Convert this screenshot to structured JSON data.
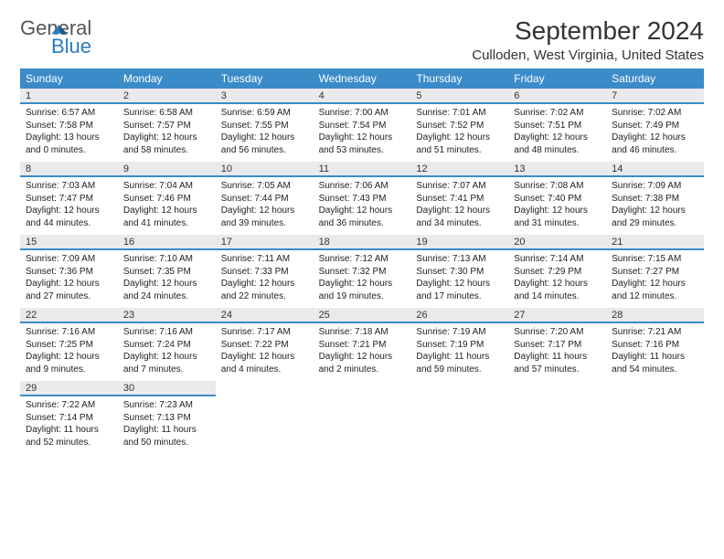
{
  "logo": {
    "word1": "General",
    "word2": "Blue"
  },
  "title": "September 2024",
  "location": "Culloden, West Virginia, United States",
  "colors": {
    "header_bg": "#3b8bc9",
    "header_text": "#ffffff",
    "daynum_bg": "#e9eaeb",
    "daynum_border": "#3b8bc9",
    "body_text": "#222222",
    "logo_gray": "#54555a",
    "logo_blue": "#2b7bbf"
  },
  "dow": [
    "Sunday",
    "Monday",
    "Tuesday",
    "Wednesday",
    "Thursday",
    "Friday",
    "Saturday"
  ],
  "days": [
    {
      "n": "1",
      "sr": "6:57 AM",
      "ss": "7:58 PM",
      "dl": "13 hours and 0 minutes."
    },
    {
      "n": "2",
      "sr": "6:58 AM",
      "ss": "7:57 PM",
      "dl": "12 hours and 58 minutes."
    },
    {
      "n": "3",
      "sr": "6:59 AM",
      "ss": "7:55 PM",
      "dl": "12 hours and 56 minutes."
    },
    {
      "n": "4",
      "sr": "7:00 AM",
      "ss": "7:54 PM",
      "dl": "12 hours and 53 minutes."
    },
    {
      "n": "5",
      "sr": "7:01 AM",
      "ss": "7:52 PM",
      "dl": "12 hours and 51 minutes."
    },
    {
      "n": "6",
      "sr": "7:02 AM",
      "ss": "7:51 PM",
      "dl": "12 hours and 48 minutes."
    },
    {
      "n": "7",
      "sr": "7:02 AM",
      "ss": "7:49 PM",
      "dl": "12 hours and 46 minutes."
    },
    {
      "n": "8",
      "sr": "7:03 AM",
      "ss": "7:47 PM",
      "dl": "12 hours and 44 minutes."
    },
    {
      "n": "9",
      "sr": "7:04 AM",
      "ss": "7:46 PM",
      "dl": "12 hours and 41 minutes."
    },
    {
      "n": "10",
      "sr": "7:05 AM",
      "ss": "7:44 PM",
      "dl": "12 hours and 39 minutes."
    },
    {
      "n": "11",
      "sr": "7:06 AM",
      "ss": "7:43 PM",
      "dl": "12 hours and 36 minutes."
    },
    {
      "n": "12",
      "sr": "7:07 AM",
      "ss": "7:41 PM",
      "dl": "12 hours and 34 minutes."
    },
    {
      "n": "13",
      "sr": "7:08 AM",
      "ss": "7:40 PM",
      "dl": "12 hours and 31 minutes."
    },
    {
      "n": "14",
      "sr": "7:09 AM",
      "ss": "7:38 PM",
      "dl": "12 hours and 29 minutes."
    },
    {
      "n": "15",
      "sr": "7:09 AM",
      "ss": "7:36 PM",
      "dl": "12 hours and 27 minutes."
    },
    {
      "n": "16",
      "sr": "7:10 AM",
      "ss": "7:35 PM",
      "dl": "12 hours and 24 minutes."
    },
    {
      "n": "17",
      "sr": "7:11 AM",
      "ss": "7:33 PM",
      "dl": "12 hours and 22 minutes."
    },
    {
      "n": "18",
      "sr": "7:12 AM",
      "ss": "7:32 PM",
      "dl": "12 hours and 19 minutes."
    },
    {
      "n": "19",
      "sr": "7:13 AM",
      "ss": "7:30 PM",
      "dl": "12 hours and 17 minutes."
    },
    {
      "n": "20",
      "sr": "7:14 AM",
      "ss": "7:29 PM",
      "dl": "12 hours and 14 minutes."
    },
    {
      "n": "21",
      "sr": "7:15 AM",
      "ss": "7:27 PM",
      "dl": "12 hours and 12 minutes."
    },
    {
      "n": "22",
      "sr": "7:16 AM",
      "ss": "7:25 PM",
      "dl": "12 hours and 9 minutes."
    },
    {
      "n": "23",
      "sr": "7:16 AM",
      "ss": "7:24 PM",
      "dl": "12 hours and 7 minutes."
    },
    {
      "n": "24",
      "sr": "7:17 AM",
      "ss": "7:22 PM",
      "dl": "12 hours and 4 minutes."
    },
    {
      "n": "25",
      "sr": "7:18 AM",
      "ss": "7:21 PM",
      "dl": "12 hours and 2 minutes."
    },
    {
      "n": "26",
      "sr": "7:19 AM",
      "ss": "7:19 PM",
      "dl": "11 hours and 59 minutes."
    },
    {
      "n": "27",
      "sr": "7:20 AM",
      "ss": "7:17 PM",
      "dl": "11 hours and 57 minutes."
    },
    {
      "n": "28",
      "sr": "7:21 AM",
      "ss": "7:16 PM",
      "dl": "11 hours and 54 minutes."
    },
    {
      "n": "29",
      "sr": "7:22 AM",
      "ss": "7:14 PM",
      "dl": "11 hours and 52 minutes."
    },
    {
      "n": "30",
      "sr": "7:23 AM",
      "ss": "7:13 PM",
      "dl": "11 hours and 50 minutes."
    }
  ],
  "labels": {
    "sunrise": "Sunrise: ",
    "sunset": "Sunset: ",
    "daylight": "Daylight: "
  },
  "layout": {
    "start_dow": 0,
    "total_cells": 35
  }
}
